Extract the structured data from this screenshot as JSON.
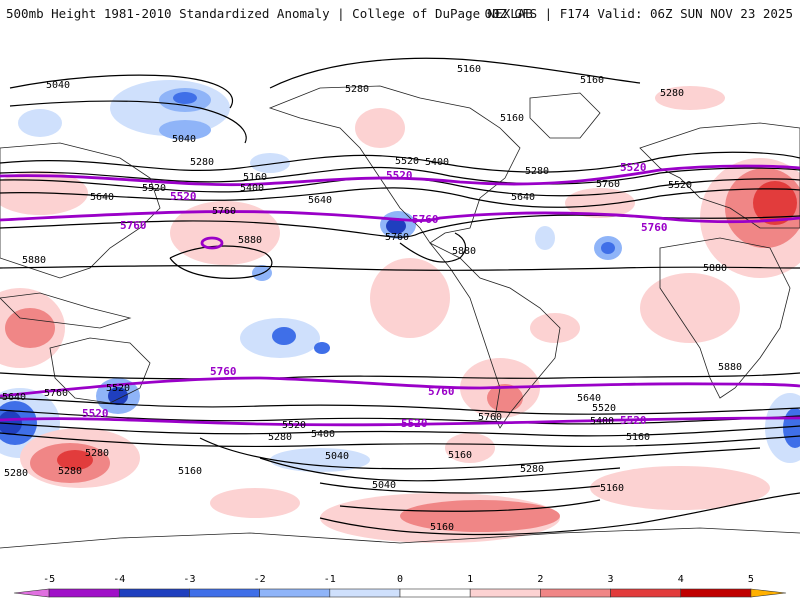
{
  "header": {
    "title": "500mb Height 1981-2010 Standardized Anomaly | College of DuPage NEXLAB",
    "model_info": "00Z GFS | F174 Valid: 06Z SUN NOV 23 2025"
  },
  "colors": {
    "background": "#ffffff",
    "contour_black": "#000000",
    "contour_purple": "#9a00c8",
    "land_outline": "#222222"
  },
  "legend": {
    "ticks": [
      "-5",
      "-4",
      "-3",
      "-2",
      "-1",
      "0",
      "1",
      "2",
      "3",
      "4",
      "5"
    ],
    "bins": [
      {
        "from": -5.5,
        "to": -5,
        "color": "#e070e0"
      },
      {
        "from": -5,
        "to": -4,
        "color": "#a010c8"
      },
      {
        "from": -4,
        "to": -3,
        "color": "#1f3fbf"
      },
      {
        "from": -3,
        "to": -2,
        "color": "#3f6fe8"
      },
      {
        "from": -2,
        "to": -1,
        "color": "#8fb4f8"
      },
      {
        "from": -1,
        "to": 0,
        "color": "#cfe0fc"
      },
      {
        "from": 0,
        "to": 1,
        "color": "#ffffff"
      },
      {
        "from": 1,
        "to": 2,
        "color": "#fcd2d2"
      },
      {
        "from": 2,
        "to": 3,
        "color": "#f08686"
      },
      {
        "from": 3,
        "to": 4,
        "color": "#e23c3c"
      },
      {
        "from": 4,
        "to": 5,
        "color": "#c00000"
      },
      {
        "from": 5,
        "to": 5.5,
        "color": "#ffb000"
      }
    ]
  },
  "contour_labels": {
    "black": [
      "5040",
      "5280",
      "5160",
      "5160",
      "5280",
      "5040",
      "5280",
      "5520",
      "5400",
      "5160",
      "5520",
      "5640",
      "5760",
      "5880",
      "5880",
      "5880",
      "5400",
      "5280",
      "5520",
      "5160",
      "5640",
      "5760",
      "5640",
      "5760",
      "5880",
      "5520",
      "5640",
      "5160",
      "5280",
      "5040",
      "5760",
      "5280",
      "5520",
      "5400",
      "5280",
      "5160",
      "5160",
      "5040",
      "5280",
      "5160",
      "5640",
      "5520",
      "5400",
      "5160",
      "5280",
      "5760",
      "5880"
    ],
    "purple": [
      "5520",
      "5760",
      "5520",
      "5520",
      "5760",
      "5760",
      "5760",
      "5760",
      "5520",
      "5520",
      "5520"
    ]
  }
}
